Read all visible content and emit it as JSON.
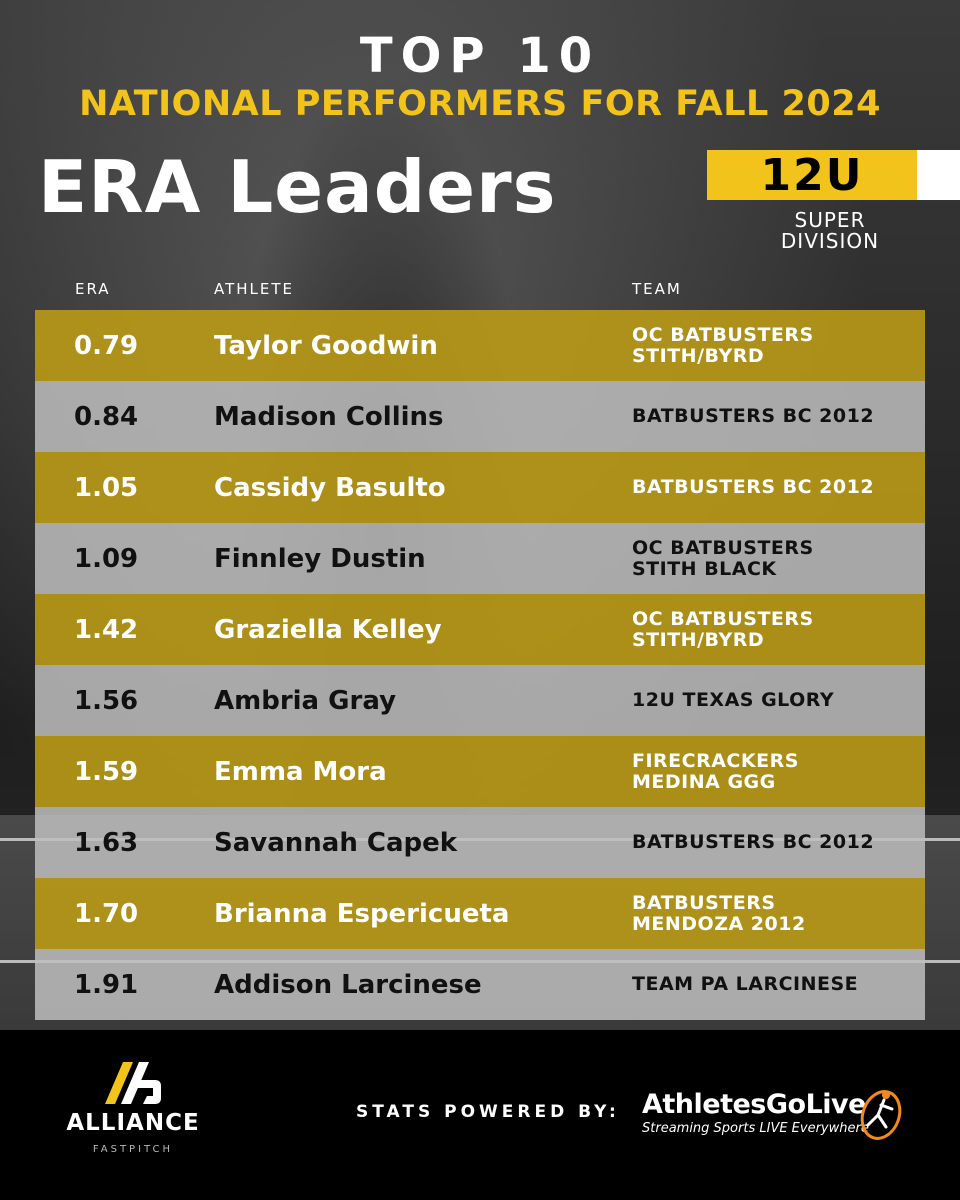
{
  "header": {
    "top": "TOP 10",
    "subtitle": "NATIONAL PERFORMERS FOR FALL 2024",
    "title": "ERA Leaders",
    "division_code": "12U",
    "division_line1": "SUPER",
    "division_line2": "DIVISION"
  },
  "columns": {
    "era": "ERA",
    "athlete": "ATHLETE",
    "team": "TEAM"
  },
  "rows": [
    {
      "era": "0.79",
      "athlete": "Taylor Goodwin",
      "team_line1": "OC BATBUSTERS",
      "team_line2": "STITH/BYRD"
    },
    {
      "era": "0.84",
      "athlete": "Madison Collins",
      "team_line1": "BATBUSTERS BC 2012",
      "team_line2": ""
    },
    {
      "era": "1.05",
      "athlete": "Cassidy Basulto",
      "team_line1": "BATBUSTERS BC 2012",
      "team_line2": ""
    },
    {
      "era": "1.09",
      "athlete": "Finnley Dustin",
      "team_line1": "OC BATBUSTERS",
      "team_line2": "STITH BLACK"
    },
    {
      "era": "1.42",
      "athlete": "Graziella Kelley",
      "team_line1": "OC BATBUSTERS",
      "team_line2": "STITH/BYRD"
    },
    {
      "era": "1.56",
      "athlete": "Ambria Gray",
      "team_line1": "12U TEXAS GLORY",
      "team_line2": ""
    },
    {
      "era": "1.59",
      "athlete": "Emma Mora",
      "team_line1": "FIRECRACKERS",
      "team_line2": "MEDINA GGG"
    },
    {
      "era": "1.63",
      "athlete": "Savannah Capek",
      "team_line1": "BATBUSTERS BC 2012",
      "team_line2": ""
    },
    {
      "era": "1.70",
      "athlete": "Brianna Espericueta",
      "team_line1": "BATBUSTERS",
      "team_line2": "MENDOZA 2012"
    },
    {
      "era": "1.91",
      "athlete": "Addison Larcinese",
      "team_line1": "TEAM PA LARCINESE",
      "team_line2": ""
    }
  ],
  "footer": {
    "brand": "ALLIANCE",
    "brand_sub": "FASTPITCH",
    "powered_by": "STATS POWERED BY:",
    "sponsor_name": "AthletesGoLive",
    "sponsor_tagline": "Streaming Sports LIVE Everywhere"
  },
  "colors": {
    "accent_gold": "#f2c31a",
    "row_gold": "#b99a16",
    "row_gray": "#bebebe",
    "sponsor_orange": "#f08a1c"
  }
}
